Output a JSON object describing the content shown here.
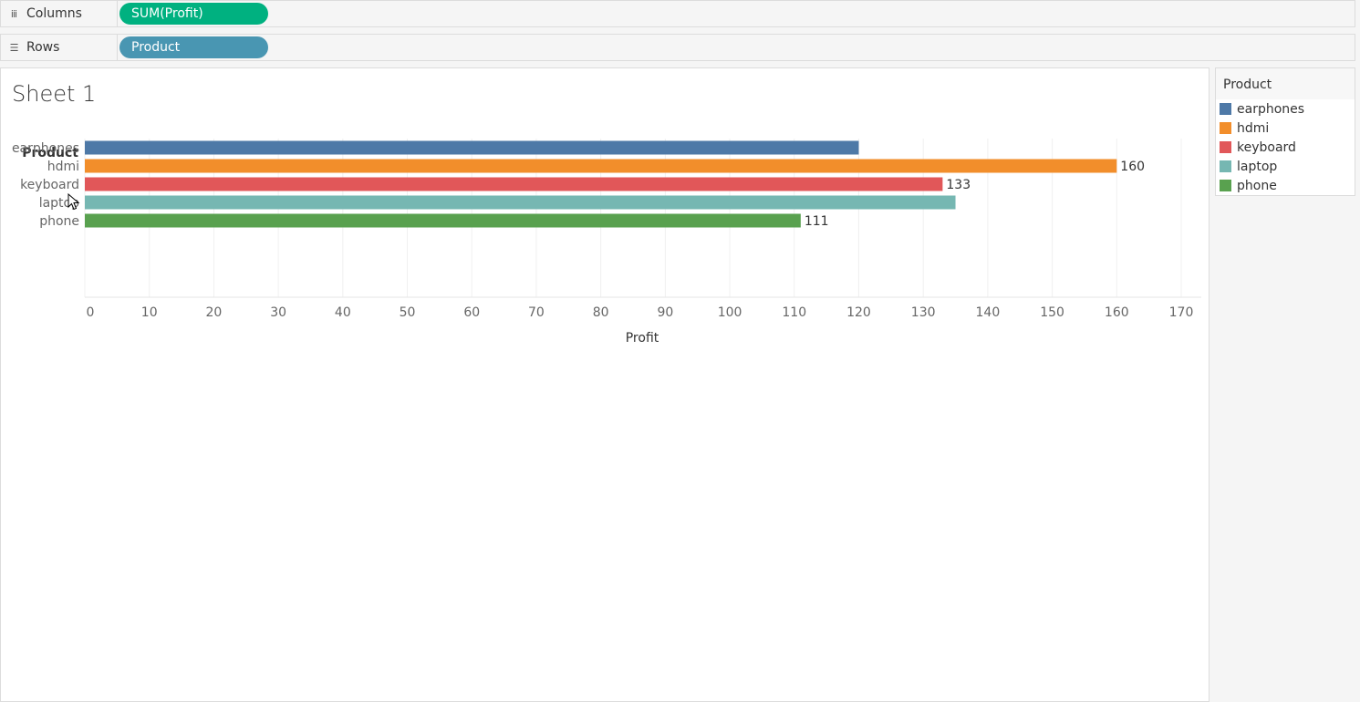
{
  "shelves": {
    "columns": {
      "label": "Columns",
      "pill": "SUM(Profit)"
    },
    "rows": {
      "label": "Rows",
      "pill": "Product"
    }
  },
  "sheet": {
    "title": "Sheet 1"
  },
  "legend": {
    "title": "Product",
    "items": [
      {
        "label": "earphones",
        "color": "#4e79a7"
      },
      {
        "label": "hdmi",
        "color": "#f28e2b"
      },
      {
        "label": "keyboard",
        "color": "#e15759"
      },
      {
        "label": "laptop",
        "color": "#76b7b2"
      },
      {
        "label": "phone",
        "color": "#59a14f"
      }
    ]
  },
  "chart_data": {
    "type": "bar",
    "orientation": "horizontal",
    "row_header": "Product",
    "categories": [
      "earphones",
      "hdmi",
      "keyboard",
      "laptop",
      "phone"
    ],
    "values": [
      120,
      160,
      133,
      135,
      111
    ],
    "data_labels": [
      "",
      "160",
      "133",
      "",
      "111"
    ],
    "colors": [
      "#4e79a7",
      "#f28e2b",
      "#e15759",
      "#76b7b2",
      "#59a14f"
    ],
    "xlabel": "Profit",
    "xlim": [
      0,
      170
    ],
    "ticks": [
      0,
      10,
      20,
      30,
      40,
      50,
      60,
      70,
      80,
      90,
      100,
      110,
      120,
      130,
      140,
      150,
      160,
      170
    ],
    "grid": true
  }
}
